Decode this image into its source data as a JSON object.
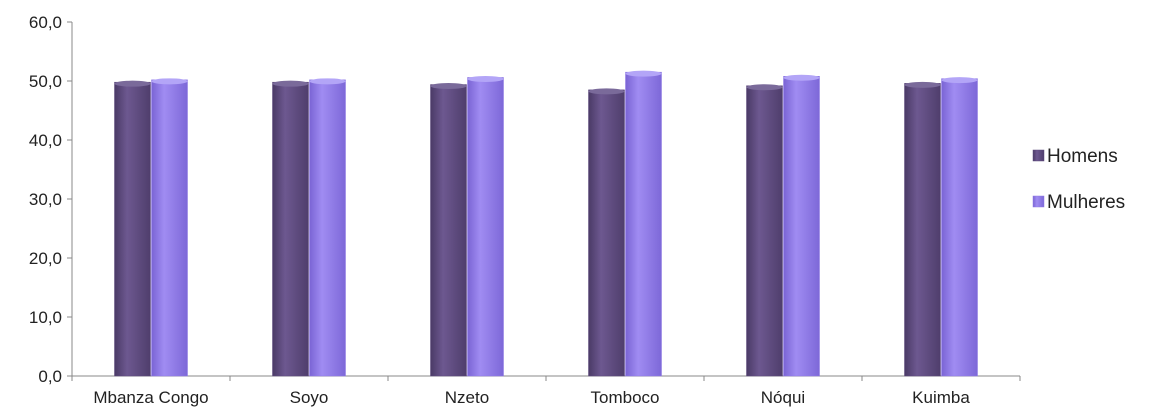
{
  "chart_data": {
    "type": "bar",
    "categories": [
      "Mbanza Congo",
      "Soyo",
      "Nzeto",
      "Tomboco",
      "Nóqui",
      "Kuimba"
    ],
    "series": [
      {
        "name": "Homens",
        "values": [
          49.8,
          49.8,
          49.4,
          48.5,
          49.2,
          49.6
        ],
        "color": "#5e4a7e"
      },
      {
        "name": "Mulheres",
        "values": [
          50.2,
          50.2,
          50.6,
          51.5,
          50.8,
          50.4
        ],
        "color": "#8f7ae6"
      }
    ],
    "y_ticks": [
      "0,0",
      "10,0",
      "20,0",
      "30,0",
      "40,0",
      "50,0",
      "60,0"
    ],
    "ylim": [
      0,
      60
    ],
    "grid": false,
    "legend_position": "right"
  }
}
